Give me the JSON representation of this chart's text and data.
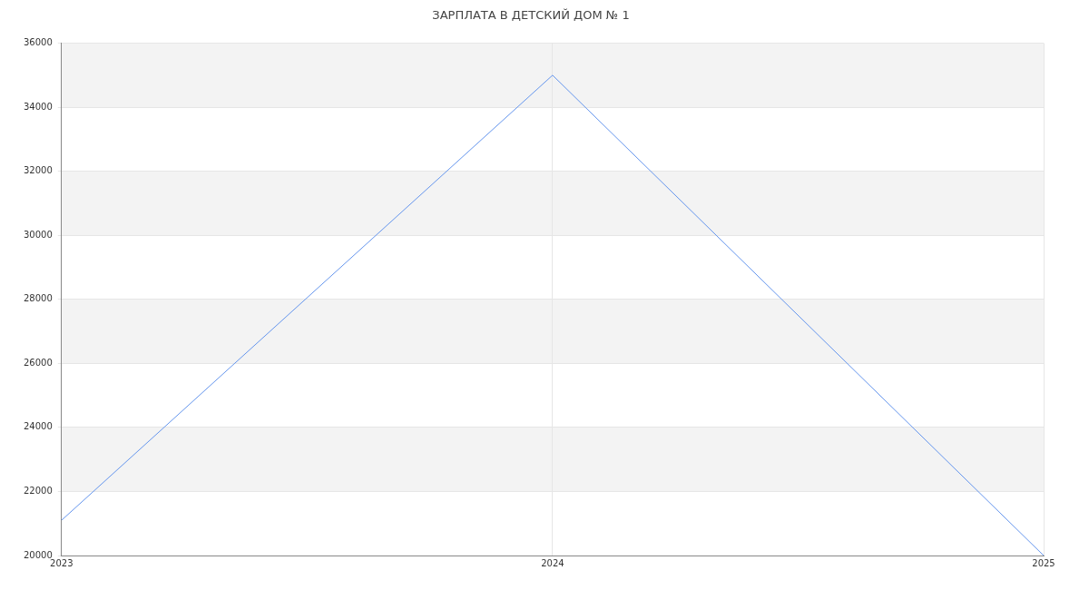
{
  "chart_data": {
    "type": "line",
    "title": "ЗАРПЛАТА В ДЕТСКИЙ ДОМ № 1",
    "x": [
      2023,
      2024,
      2025
    ],
    "series": [
      {
        "color": "#6495ed",
        "values": [
          21100,
          35000,
          20000
        ]
      }
    ],
    "xlim": [
      2023,
      2025
    ],
    "xticks": [
      2023,
      2024,
      2025
    ],
    "ylim": [
      20000,
      36000
    ],
    "yticks": [
      20000,
      22000,
      24000,
      26000,
      28000,
      30000,
      32000,
      34000,
      36000
    ],
    "grid": true,
    "legend": false,
    "marker": "none"
  }
}
